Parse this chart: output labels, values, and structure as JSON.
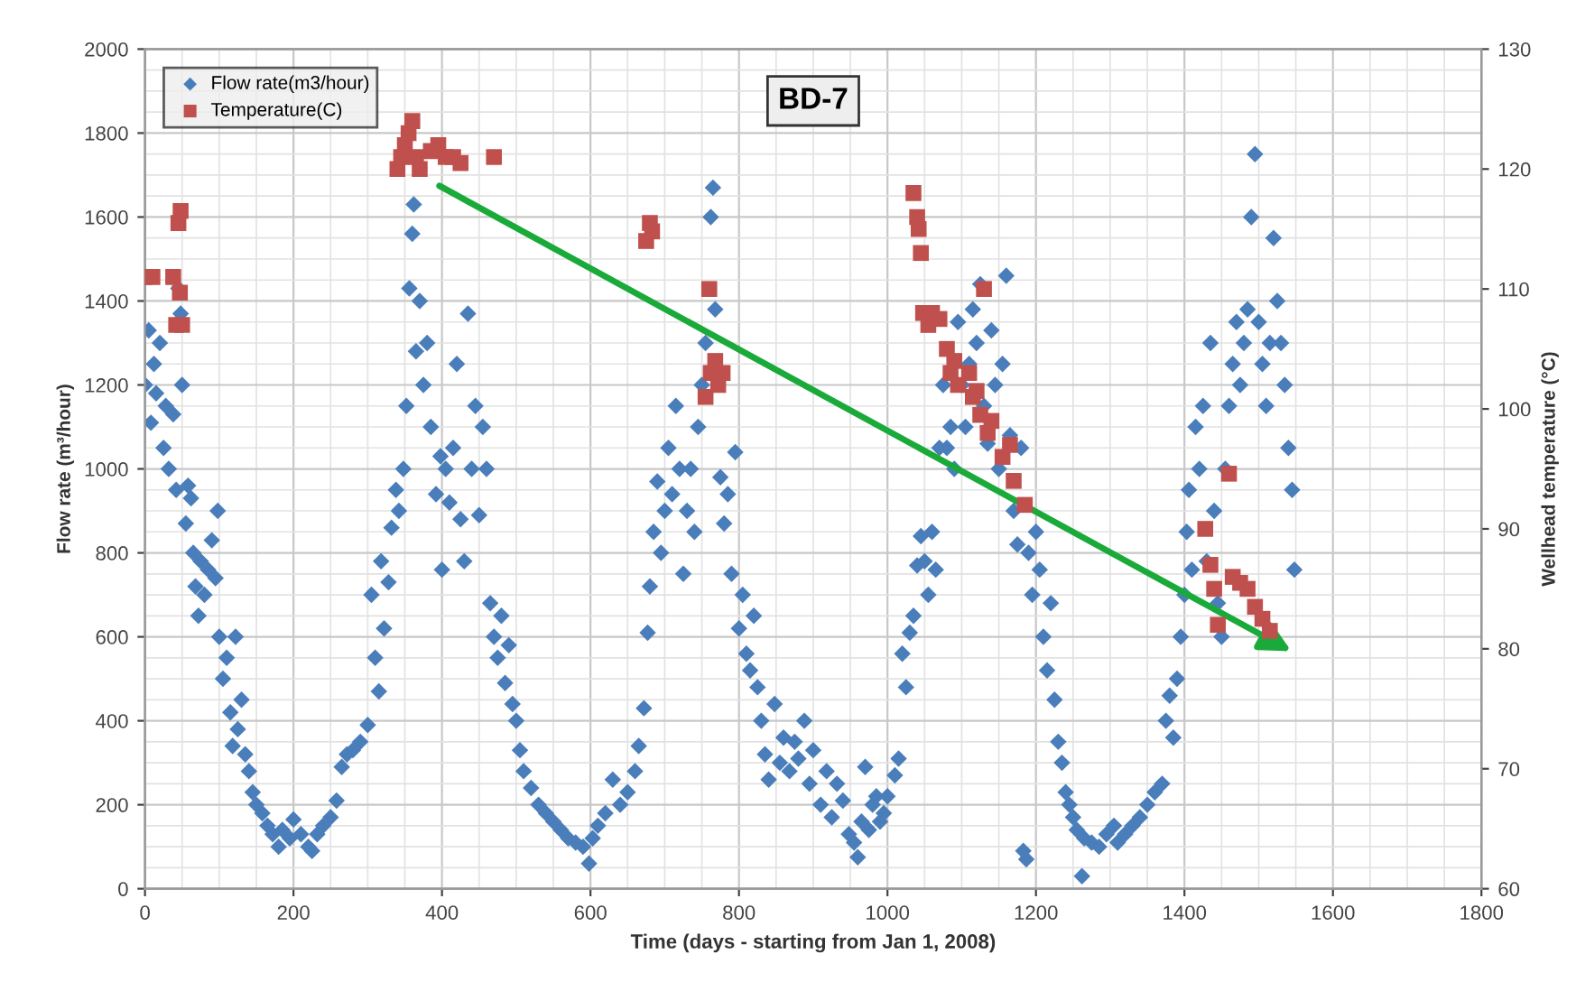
{
  "chart_data": {
    "type": "scatter",
    "title": "BD-7",
    "xlabel": "Time (days - starting from Jan 1, 2008)",
    "ylabel": "Flow rate (m³/hour)",
    "y2label": "Wellhead temperature (°C)",
    "xlim": [
      0,
      1800
    ],
    "xticks": [
      0,
      200,
      400,
      600,
      800,
      1000,
      1200,
      1400,
      1600,
      1800
    ],
    "ylim": [
      0,
      2000
    ],
    "yticks": [
      0,
      200,
      400,
      600,
      800,
      1000,
      1200,
      1400,
      1600,
      1800,
      2000
    ],
    "y2lim": [
      60,
      130
    ],
    "y2ticks": [
      60,
      70,
      80,
      90,
      100,
      110,
      120,
      130
    ],
    "grid": true,
    "legend": "top left",
    "series": [
      {
        "name": "Flow rate(m3/hour)",
        "color": "#4a7ebb",
        "marker": "diamond",
        "x": [
          0,
          5,
          8,
          12,
          15,
          20,
          25,
          28,
          32,
          38,
          42,
          45,
          48,
          50,
          55,
          58,
          62,
          65,
          68,
          72,
          75,
          80,
          85,
          90,
          95,
          98,
          100,
          105,
          110,
          115,
          118,
          122,
          125,
          130,
          135,
          140,
          145,
          150,
          158,
          165,
          172,
          180,
          185,
          195,
          200,
          210,
          220,
          225,
          232,
          240,
          250,
          258,
          265,
          272,
          280,
          290,
          300,
          305,
          310,
          315,
          318,
          322,
          328,
          332,
          338,
          342,
          348,
          352,
          356,
          360,
          362,
          365,
          370,
          375,
          380,
          385,
          392,
          398,
          400,
          405,
          410,
          415,
          420,
          425,
          430,
          435,
          440,
          445,
          450,
          455,
          460,
          465,
          470,
          475,
          480,
          485,
          490,
          495,
          500,
          505,
          510,
          520,
          530,
          540,
          550,
          560,
          570,
          580,
          590,
          598,
          603,
          610,
          620,
          630,
          640,
          650,
          660,
          665,
          672,
          677,
          680,
          685,
          690,
          695,
          700,
          705,
          710,
          715,
          720,
          725,
          730,
          735,
          740,
          745,
          750,
          755,
          762,
          765,
          768,
          775,
          780,
          785,
          790,
          795,
          800,
          805,
          810,
          815,
          820,
          825,
          830,
          835,
          840,
          848,
          855,
          860,
          868,
          875,
          880,
          888,
          895,
          900,
          910,
          918,
          925,
          932,
          940,
          948,
          955,
          960,
          965,
          970,
          975,
          980,
          985,
          990,
          995,
          1000,
          1010,
          1015,
          1020,
          1025,
          1030,
          1035,
          1040,
          1045,
          1050,
          1055,
          1060,
          1065,
          1070,
          1075,
          1080,
          1085,
          1090,
          1095,
          1100,
          1105,
          1110,
          1115,
          1120,
          1125,
          1130,
          1135,
          1140,
          1145,
          1150,
          1155,
          1160,
          1165,
          1170,
          1175,
          1180,
          1183,
          1187,
          1190,
          1195,
          1200,
          1205,
          1210,
          1215,
          1220,
          1225,
          1230,
          1235,
          1240,
          1245,
          1250,
          1255,
          1262,
          1265,
          1275,
          1285,
          1295,
          1305,
          1310,
          1320,
          1330,
          1340,
          1350,
          1360,
          1370,
          1375,
          1380,
          1385,
          1390,
          1395,
          1400,
          1403,
          1406,
          1410,
          1415,
          1420,
          1425,
          1430,
          1435,
          1440,
          1445,
          1450,
          1455,
          1460,
          1465,
          1470,
          1475,
          1480,
          1485,
          1490,
          1495,
          1500,
          1505,
          1510,
          1515,
          1520,
          1525,
          1530,
          1535,
          1540,
          1545,
          1548
        ],
        "values": [
          1200,
          1330,
          1110,
          1250,
          1180,
          1300,
          1050,
          1150,
          1000,
          1130,
          950,
          1430,
          1370,
          1200,
          870,
          960,
          930,
          800,
          720,
          650,
          780,
          700,
          760,
          830,
          740,
          900,
          600,
          500,
          550,
          420,
          340,
          600,
          380,
          450,
          320,
          280,
          230,
          200,
          180,
          150,
          130,
          100,
          140,
          120,
          165,
          130,
          100,
          90,
          130,
          150,
          170,
          210,
          290,
          320,
          330,
          350,
          390,
          700,
          550,
          470,
          780,
          620,
          730,
          860,
          950,
          900,
          1000,
          1150,
          1430,
          1560,
          1630,
          1280,
          1400,
          1200,
          1300,
          1100,
          940,
          1030,
          760,
          1000,
          920,
          1050,
          1250,
          880,
          780,
          1370,
          1000,
          1150,
          890,
          1100,
          1000,
          680,
          600,
          550,
          650,
          490,
          580,
          440,
          400,
          330,
          280,
          240,
          200,
          180,
          160,
          140,
          120,
          110,
          100,
          60,
          120,
          150,
          180,
          260,
          200,
          230,
          280,
          340,
          430,
          610,
          720,
          850,
          970,
          800,
          900,
          1050,
          940,
          1150,
          1000,
          750,
          900,
          1000,
          850,
          1100,
          1200,
          1300,
          1600,
          1670,
          1380,
          980,
          870,
          940,
          750,
          1040,
          620,
          700,
          560,
          520,
          650,
          480,
          400,
          320,
          260,
          440,
          300,
          360,
          280,
          350,
          310,
          400,
          250,
          330,
          200,
          280,
          170,
          250,
          210,
          130,
          110,
          75,
          160,
          290,
          140,
          200,
          220,
          160,
          180,
          220,
          270,
          310,
          560,
          480,
          610,
          650,
          770,
          840,
          780,
          700,
          850,
          760,
          1050,
          1200,
          1050,
          1100,
          1000,
          1350,
          1200,
          1100,
          1250,
          1380,
          1300,
          1440,
          1150,
          1060,
          1330,
          1200,
          1000,
          1250,
          1460,
          1080,
          900,
          820,
          1050,
          90,
          70,
          800,
          700,
          850,
          760,
          600,
          520,
          680,
          450,
          350,
          300,
          230,
          200,
          170,
          140,
          30,
          120,
          110,
          100,
          130,
          150,
          110,
          130,
          150,
          170,
          200,
          230,
          250,
          400,
          460,
          360,
          500,
          600,
          700,
          850,
          950,
          760,
          1100,
          1000,
          1150,
          780,
          1300,
          900,
          680,
          600,
          1000,
          1150,
          1250,
          1350,
          1200,
          1300,
          1380,
          1600,
          1750,
          1350,
          1250,
          1150,
          1300,
          1550,
          1400,
          1300,
          1200,
          1050,
          950,
          760
        ]
      },
      {
        "name": "Temperature(C)",
        "color": "#c0504d",
        "marker": "square",
        "axis": "y2",
        "x": [
          0,
          10,
          38,
          45,
          48,
          42,
          50,
          47,
          340,
          345,
          350,
          355,
          360,
          365,
          370,
          385,
          395,
          405,
          415,
          425,
          470,
          675,
          680,
          683,
          760,
          755,
          762,
          768,
          772,
          778,
          1035,
          1040,
          1042,
          1045,
          1048,
          1055,
          1060,
          1070,
          1080,
          1085,
          1090,
          1095,
          1110,
          1115,
          1120,
          1125,
          1130,
          1135,
          1140,
          1155,
          1165,
          1170,
          1185,
          1428,
          1435,
          1440,
          1445,
          1460,
          1465,
          1475,
          1485,
          1495,
          1505,
          1515
        ],
        "values": [
          111,
          111,
          111,
          115.5,
          116.5,
          107,
          107,
          109.7,
          120,
          121,
          122,
          123,
          124,
          121,
          120,
          121.5,
          122,
          121,
          121,
          120.5,
          121,
          114,
          115.5,
          114.8,
          110,
          101,
          103,
          104,
          102,
          103,
          118,
          116,
          115,
          113,
          108,
          107,
          108,
          107.5,
          105,
          103,
          104,
          102,
          103,
          101,
          101.5,
          99.5,
          110,
          98,
          99,
          96,
          97,
          94,
          92,
          90,
          87,
          85,
          82,
          94.6,
          86,
          85.5,
          85,
          83.5,
          82.5,
          81.5
        ]
      }
    ]
  }
}
